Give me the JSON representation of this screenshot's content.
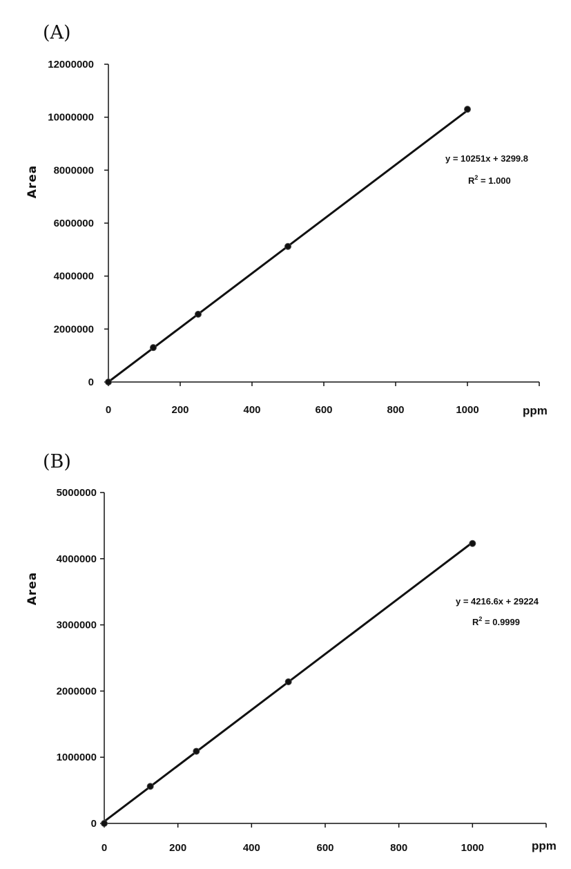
{
  "chart_data": [
    {
      "panel": "(A)",
      "type": "scatter",
      "ylabel": "Area",
      "xlabel": "ppm",
      "x": [
        0,
        125,
        250,
        500,
        1000
      ],
      "y": [
        0,
        1300000,
        2560000,
        5120000,
        10300000
      ],
      "xlim": [
        0,
        1200
      ],
      "ylim": [
        0,
        12000000
      ],
      "x_ticks": [
        "0",
        "200",
        "400",
        "600",
        "800",
        "1000"
      ],
      "y_ticks": [
        "0",
        "2000000",
        "4000000",
        "6000000",
        "8000000",
        "10000000",
        "12000000"
      ],
      "trendline": {
        "slope": 10251,
        "intercept": 3299.8
      },
      "equation": "y = 10251x + 3299.8",
      "r2_prefix": "R",
      "r2_sup": "2",
      "r2_value": " = 1.000",
      "grid": false,
      "legend": "none"
    },
    {
      "panel": "(B)",
      "type": "scatter",
      "ylabel": "Area",
      "xlabel": "ppm",
      "x": [
        0,
        125,
        250,
        500,
        1000
      ],
      "y": [
        0,
        560000,
        1090000,
        2140000,
        4230000
      ],
      "xlim": [
        0,
        1200
      ],
      "ylim": [
        0,
        5000000
      ],
      "x_ticks": [
        "0",
        "200",
        "400",
        "600",
        "800",
        "1000"
      ],
      "y_ticks": [
        "0",
        "1000000",
        "2000000",
        "3000000",
        "4000000",
        "5000000"
      ],
      "trendline": {
        "slope": 4216.6,
        "intercept": 29224
      },
      "equation": "y = 4216.6x + 29224",
      "r2_prefix": "R",
      "r2_sup": "2",
      "r2_value": " = 0.9999",
      "grid": false,
      "legend": "none"
    }
  ]
}
